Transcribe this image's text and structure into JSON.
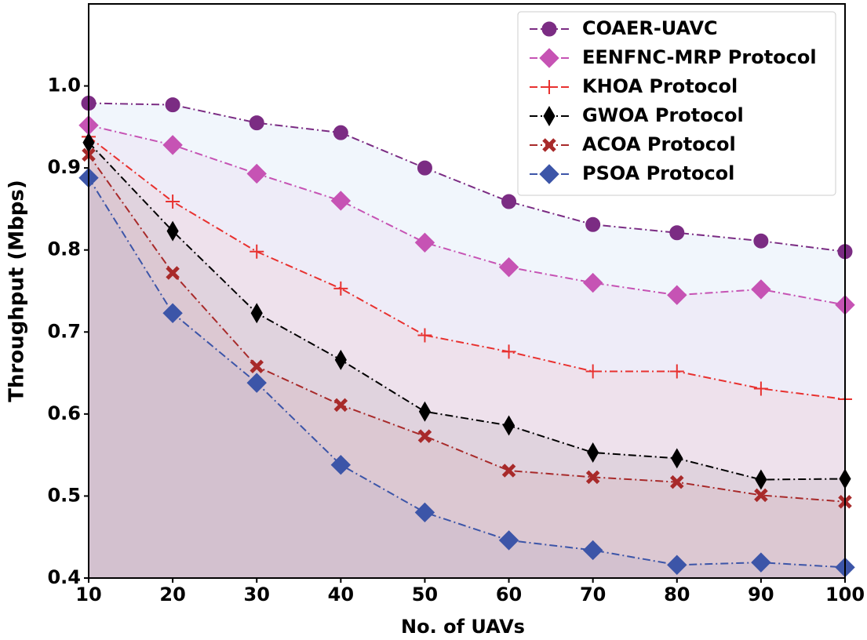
{
  "chart_data": {
    "type": "line",
    "x_label": "No. of UAVs",
    "y_label": "Throughput (Mbps)",
    "x": [
      10,
      20,
      30,
      40,
      50,
      60,
      70,
      80,
      90,
      100
    ],
    "xlim": [
      10,
      100
    ],
    "xticks": [
      10,
      20,
      30,
      40,
      50,
      60,
      70,
      80,
      90,
      100
    ],
    "ylim": [
      0.4,
      1.1
    ],
    "yticks": [
      0.4,
      0.5,
      0.6,
      0.7,
      0.8,
      0.9,
      {
        "value": 1,
        "label": "1.0"
      }
    ],
    "legend": "upper right",
    "fill": true,
    "series": [
      {
        "name": "COAER-UAVC",
        "color": "#7b2c83",
        "marker": "circle",
        "values": [
          0.979,
          0.977,
          0.955,
          0.943,
          0.9,
          0.859,
          0.831,
          0.821,
          0.811,
          0.798
        ]
      },
      {
        "name": "EENFNC-MRP Protocol",
        "color": "#c653b4",
        "marker": "diamond",
        "values": [
          0.952,
          0.928,
          0.893,
          0.86,
          0.809,
          0.779,
          0.76,
          0.745,
          0.752,
          0.733
        ]
      },
      {
        "name": "KHOA Protocol",
        "color": "#e8312f",
        "marker": "plus",
        "values": [
          0.938,
          0.859,
          0.798,
          0.753,
          0.696,
          0.676,
          0.652,
          0.652,
          0.631,
          0.618
        ]
      },
      {
        "name": "GWOA Protocol",
        "color": "#000000",
        "marker": "thin_diamond",
        "values": [
          0.931,
          0.823,
          0.723,
          0.666,
          0.603,
          0.586,
          0.553,
          0.546,
          0.52,
          0.521
        ]
      },
      {
        "name": "ACOA Protocol",
        "color": "#a82a2a",
        "marker": "x",
        "values": [
          0.916,
          0.772,
          0.658,
          0.611,
          0.573,
          0.531,
          0.523,
          0.517,
          0.501,
          0.493
        ]
      },
      {
        "name": "PSOA Protocol",
        "color": "#3c55a8",
        "marker": "diamond",
        "values": [
          0.888,
          0.723,
          0.638,
          0.538,
          0.48,
          0.446,
          0.434,
          0.416,
          0.419,
          0.413
        ]
      }
    ]
  }
}
